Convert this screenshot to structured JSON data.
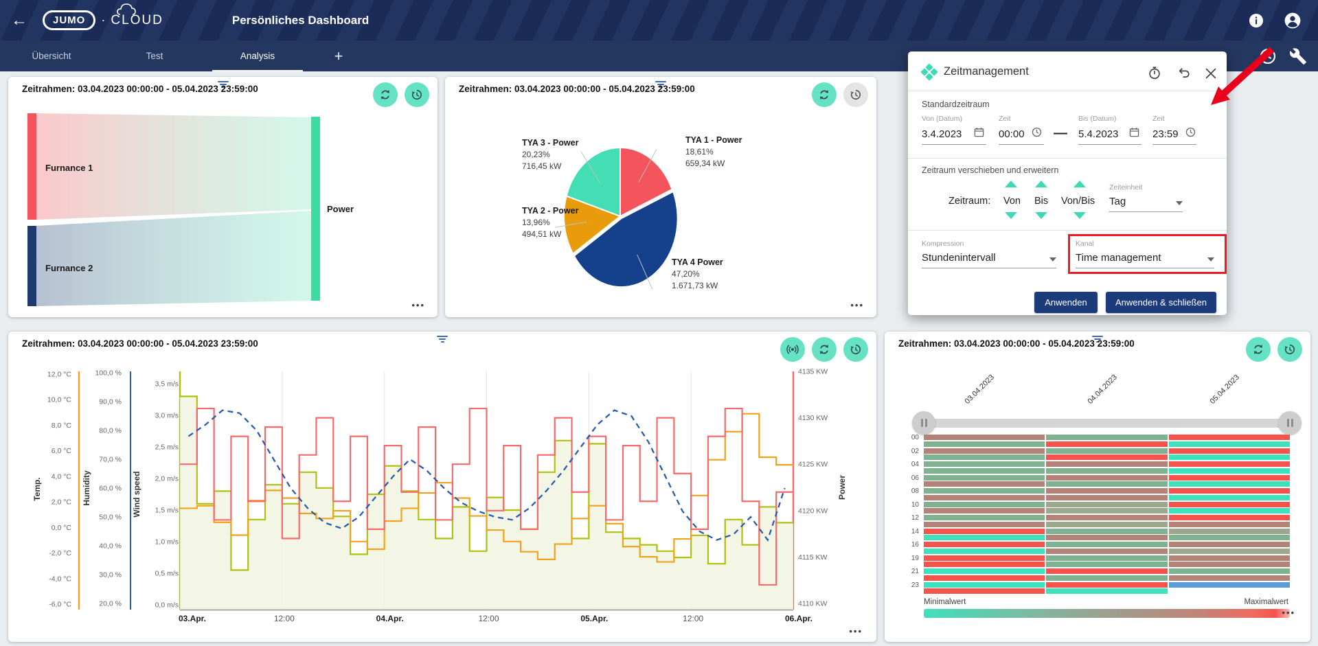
{
  "ui": {
    "dots": "•••"
  },
  "header": {
    "title": "Persönliches Dashboard",
    "logo_brand": "JUMO",
    "logo_dot": "·",
    "logo_cloud": "CLOUD",
    "back_arrow": "←"
  },
  "tabs": {
    "items": [
      "Übersicht",
      "Test",
      "Analysis"
    ],
    "active": "Analysis",
    "add_label": "+"
  },
  "annotations": {
    "arrow_color": "#E8001C",
    "highlight_color": "#EC1B23"
  },
  "dialog": {
    "title": "Zeitmanagement",
    "section1": "Standardzeitraum",
    "fields": [
      {
        "label": "Von (Datum)",
        "value": "3.4.2023",
        "icon": "calendar"
      },
      {
        "label": "Zeit",
        "value": "00:00",
        "icon": "clock"
      },
      {
        "label": "Bis (Datum)",
        "value": "5.4.2023",
        "icon": "calendar"
      },
      {
        "label": "Zeit",
        "value": "23:59",
        "icon": "clock"
      }
    ],
    "range_dash": "—",
    "section2": "Zeitraum verschieben und erweitern",
    "zeitraum_label": "Zeitraum:",
    "shift_options": [
      "Von",
      "Bis",
      "Von/Bis"
    ],
    "zeiteinheit_label": "Zeiteinheit",
    "zeiteinheit_value": "Tag",
    "kompression_label": "Kompression",
    "kompression_value": "Stundenintervall",
    "kanal_label": "Kanal",
    "kanal_value": "Time management",
    "apply_label": "Anwenden",
    "apply_close_label": "Anwenden & schließen"
  },
  "chart_data": [
    {
      "id": "sankey",
      "type": "sankey",
      "title": "Zeitrahmen: 03.04.2023 00:00:00 - 05.04.2023 23:59:00",
      "nodes": [
        {
          "name": "Furnance 1",
          "color": "#F4545C"
        },
        {
          "name": "Furnance 2",
          "color": "#1F3A6E"
        },
        {
          "name": "Power",
          "color": "#3BDCA4"
        }
      ],
      "links": [
        {
          "source": "Furnance 1",
          "target": "Power"
        },
        {
          "source": "Furnance 2",
          "target": "Power"
        }
      ]
    },
    {
      "id": "pie",
      "type": "pie",
      "title": "Zeitrahmen: 03.04.2023 00:00:00 - 05.04.2023 23:59:00",
      "slices": [
        {
          "name": "TYA 1 - Power",
          "pct_label": "18,61%",
          "value_label": "659,34 kW",
          "value": 18.61,
          "color": "#F4545C",
          "explode": false
        },
        {
          "name": "TYA 4 Power",
          "pct_label": "47,20%",
          "value_label": "1.671,73 kW",
          "value": 47.2,
          "color": "#15418C",
          "explode": true
        },
        {
          "name": "TYA 2 - Power",
          "pct_label": "13,96%",
          "value_label": "494,51 kW",
          "value": 13.96,
          "color": "#E89C0C",
          "explode": false
        },
        {
          "name": "TYA 3 - Power",
          "pct_label": "20,23%",
          "value_label": "716,45 kW",
          "value": 20.23,
          "color": "#43DEB4",
          "explode": false
        }
      ]
    },
    {
      "id": "timeseries",
      "type": "line",
      "title": "Zeitrahmen: 03.04.2023 00:00:00 - 05.04.2023 23:59:00",
      "x_interval_hours": 2,
      "x_ticks": [
        "03.Apr.",
        "12:00",
        "04.Apr.",
        "12:00",
        "05.Apr.",
        "12:00",
        "06.Apr."
      ],
      "axes": {
        "temp": {
          "title": "Temp.",
          "color": "#F0A21C",
          "min": -6,
          "max": 12,
          "ticks": [
            "12,0 °C",
            "10,0 °C",
            "8,0 °C",
            "6,0 °C",
            "4,0 °C",
            "2,0 °C",
            "0,0 °C",
            "-2,0 °C",
            "-4,0 °C",
            "-6,0 °C"
          ]
        },
        "humidity": {
          "title": "Humidity",
          "color": "#2A5CAA",
          "min": 20,
          "max": 100,
          "ticks": [
            "100,0 %",
            "90,0 %",
            "80,0 %",
            "70,0 %",
            "60,0 %",
            "50,0 %",
            "40,0 %",
            "30,0 %",
            "20,0 %"
          ]
        },
        "wind": {
          "title": "Wind speed",
          "color": "#AFC00F",
          "min": 0,
          "max": 3.5,
          "ticks": [
            "3,5 m/s",
            "3,0 m/s",
            "2,5 m/s",
            "2,0 m/s",
            "1,5 m/s",
            "1,0 m/s",
            "0,5 m/s",
            "0,0 m/s"
          ]
        },
        "power": {
          "title": "Power",
          "color": "#F56A6A",
          "min": 4110,
          "max": 4135,
          "ticks": [
            "4135 KW",
            "4130 KW",
            "4125 KW",
            "4120 KW",
            "4115 KW",
            "4110 KW"
          ]
        }
      },
      "series": [
        {
          "name": "Wind speed",
          "axis": "wind",
          "style": "step-area",
          "color": "#AFC00F",
          "fill": "#F2F5E0",
          "values": [
            3.3,
            1.6,
            1.8,
            0.55,
            1.35,
            1.9,
            1.6,
            2.1,
            1.85,
            1.4,
            0.8,
            1.75,
            2.2,
            1.8,
            1.35,
            1.05,
            1.55,
            0.85,
            1.7,
            1.5,
            1.2,
            2.1,
            2.6,
            1.05,
            2.55,
            1.15,
            1.05,
            0.95,
            0.85,
            0.75,
            1.1,
            0.65,
            1.35,
            0.95,
            1.55,
            1.3
          ]
        },
        {
          "name": "Temp.",
          "axis": "temp",
          "style": "step",
          "color": "#F0A21C",
          "values": [
            1.5,
            1.7,
            0.4,
            -0.6,
            2.1,
            2.9,
            2.3,
            1.1,
            0.7,
            1.3,
            -1.1,
            -1.7,
            0.5,
            1.5,
            2.7,
            3.5,
            2.3,
            0.9,
            -0.2,
            -1.1,
            -1.9,
            -2.5,
            -1.3,
            0.7,
            1.7,
            0.3,
            -1.5,
            -2.3,
            -2.7,
            -0.9,
            2.5,
            5.3,
            7.5,
            8.9,
            5.5,
            4.9
          ]
        },
        {
          "name": "Power",
          "axis": "power",
          "style": "step",
          "color": "#F56A6A",
          "values": [
            4125,
            4131,
            4119,
            4128,
            4121,
            4129,
            4117,
            4126,
            4130,
            4121,
            4128,
            4118,
            4127,
            4122,
            4129,
            4119,
            4125,
            4131,
            4120,
            4127,
            4118,
            4126,
            4130,
            4122,
            4128,
            4119,
            4127,
            4121,
            4130,
            4124,
            4118,
            4128,
            4131,
            4121,
            4112,
            4122
          ]
        },
        {
          "name": "Humidity",
          "axis": "humidity",
          "style": "dashed",
          "color": "#2A5CAA",
          "values": [
            78,
            82,
            87,
            86,
            80,
            70,
            60,
            53,
            48,
            46,
            50,
            57,
            64,
            70,
            66,
            60,
            55,
            52,
            50,
            49,
            53,
            59,
            66,
            74,
            82,
            87,
            85,
            76,
            64,
            52,
            45,
            42,
            44,
            50,
            42,
            60
          ]
        }
      ]
    },
    {
      "id": "heatmap",
      "type": "heatmap",
      "title": "Zeitrahmen: 03.04.2023 00:00:00 - 05.04.2023 23:59:00",
      "columns": [
        "03.04.2023",
        "04.04.2023",
        "05.04.2023"
      ],
      "row_labels": [
        "00",
        "02",
        "04",
        "06",
        "08",
        "10",
        "12",
        "14",
        "16",
        "19",
        "21",
        "23"
      ],
      "legend": {
        "min": "Minimalwert",
        "max": "Maximalwert"
      },
      "palette": {
        "mint": "#3FE0BC",
        "green": "#7FB290",
        "sage": "#9DA98E",
        "brown": "#B38378",
        "red": "#F5534E",
        "blue": "#5C9BD6",
        "none": "transparent"
      },
      "matrix": [
        [
          "brown",
          "green",
          "red"
        ],
        [
          "green",
          "red",
          "mint"
        ],
        [
          "brown",
          "green",
          "red"
        ],
        [
          "green",
          "red",
          "mint"
        ],
        [
          "green",
          "brown",
          "red"
        ],
        [
          "green",
          "green",
          "mint"
        ],
        [
          "green",
          "brown",
          "red"
        ],
        [
          "brown",
          "green",
          "mint"
        ],
        [
          "green",
          "brown",
          "red"
        ],
        [
          "brown",
          "brown",
          "mint"
        ],
        [
          "green",
          "sage",
          "red"
        ],
        [
          "brown",
          "sage",
          "mint"
        ],
        [
          "green",
          "brown",
          "red"
        ],
        [
          "brown",
          "sage",
          "brown"
        ],
        [
          "red",
          "green",
          "sage"
        ],
        [
          "mint",
          "brown",
          "green"
        ],
        [
          "red",
          "green",
          "brown"
        ],
        [
          "mint",
          "brown",
          "sage"
        ],
        [
          "red",
          "green",
          "brown"
        ],
        [
          "red",
          "green",
          "brown"
        ],
        [
          "mint",
          "red",
          "green"
        ],
        [
          "red",
          "green",
          "brown"
        ],
        [
          "mint",
          "red",
          "blue"
        ],
        [
          "red",
          "mint",
          "none"
        ]
      ]
    }
  ]
}
